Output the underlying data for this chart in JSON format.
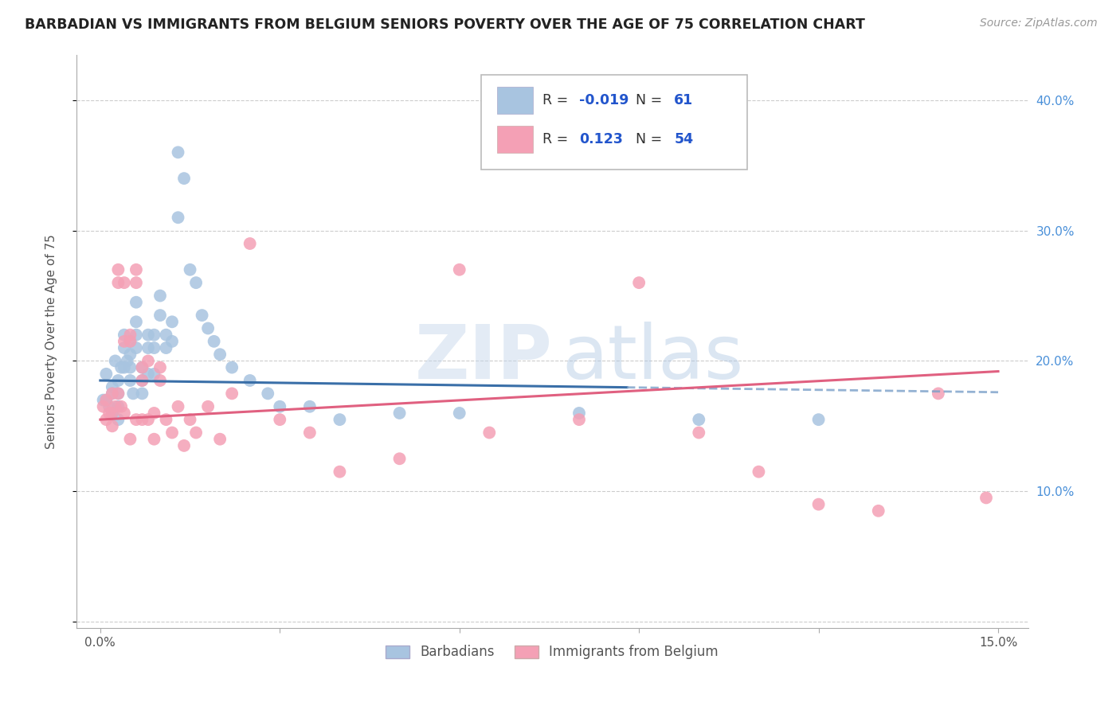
{
  "title": "BARBADIAN VS IMMIGRANTS FROM BELGIUM SENIORS POVERTY OVER THE AGE OF 75 CORRELATION CHART",
  "source": "Source: ZipAtlas.com",
  "ylabel": "Seniors Poverty Over the Age of 75",
  "blue_R": -0.019,
  "blue_N": 61,
  "pink_R": 0.123,
  "pink_N": 54,
  "blue_color": "#a8c4e0",
  "pink_color": "#f4a0b5",
  "blue_line_color": "#3a6fa8",
  "pink_line_color": "#e06080",
  "dashed_line_color": "#7a9fc8",
  "watermark_zip": "ZIP",
  "watermark_atlas": "atlas",
  "legend_label_blue": "Barbadians",
  "legend_label_pink": "Immigrants from Belgium",
  "blue_x": [
    0.0005,
    0.001,
    0.001,
    0.0015,
    0.002,
    0.002,
    0.002,
    0.0025,
    0.003,
    0.003,
    0.003,
    0.003,
    0.0035,
    0.004,
    0.004,
    0.004,
    0.0045,
    0.005,
    0.005,
    0.005,
    0.005,
    0.0055,
    0.006,
    0.006,
    0.006,
    0.006,
    0.007,
    0.007,
    0.007,
    0.008,
    0.008,
    0.008,
    0.009,
    0.009,
    0.009,
    0.01,
    0.01,
    0.011,
    0.011,
    0.012,
    0.012,
    0.013,
    0.013,
    0.014,
    0.015,
    0.016,
    0.017,
    0.018,
    0.019,
    0.02,
    0.022,
    0.025,
    0.028,
    0.03,
    0.035,
    0.04,
    0.05,
    0.06,
    0.08,
    0.1,
    0.12
  ],
  "blue_y": [
    0.17,
    0.19,
    0.17,
    0.165,
    0.18,
    0.175,
    0.16,
    0.2,
    0.185,
    0.175,
    0.165,
    0.155,
    0.195,
    0.22,
    0.21,
    0.195,
    0.2,
    0.215,
    0.205,
    0.195,
    0.185,
    0.175,
    0.245,
    0.23,
    0.22,
    0.21,
    0.195,
    0.185,
    0.175,
    0.22,
    0.21,
    0.19,
    0.22,
    0.21,
    0.19,
    0.25,
    0.235,
    0.22,
    0.21,
    0.23,
    0.215,
    0.31,
    0.36,
    0.34,
    0.27,
    0.26,
    0.235,
    0.225,
    0.215,
    0.205,
    0.195,
    0.185,
    0.175,
    0.165,
    0.165,
    0.155,
    0.16,
    0.16,
    0.16,
    0.155,
    0.155
  ],
  "pink_x": [
    0.0005,
    0.001,
    0.001,
    0.0015,
    0.002,
    0.002,
    0.002,
    0.0025,
    0.003,
    0.003,
    0.003,
    0.0035,
    0.004,
    0.004,
    0.004,
    0.005,
    0.005,
    0.005,
    0.006,
    0.006,
    0.006,
    0.007,
    0.007,
    0.007,
    0.008,
    0.008,
    0.009,
    0.009,
    0.01,
    0.01,
    0.011,
    0.012,
    0.013,
    0.014,
    0.015,
    0.016,
    0.018,
    0.02,
    0.022,
    0.025,
    0.03,
    0.035,
    0.04,
    0.05,
    0.06,
    0.065,
    0.08,
    0.09,
    0.1,
    0.11,
    0.12,
    0.13,
    0.14,
    0.148
  ],
  "pink_y": [
    0.165,
    0.17,
    0.155,
    0.16,
    0.175,
    0.16,
    0.15,
    0.165,
    0.27,
    0.26,
    0.175,
    0.165,
    0.26,
    0.215,
    0.16,
    0.22,
    0.215,
    0.14,
    0.27,
    0.26,
    0.155,
    0.195,
    0.185,
    0.155,
    0.2,
    0.155,
    0.16,
    0.14,
    0.195,
    0.185,
    0.155,
    0.145,
    0.165,
    0.135,
    0.155,
    0.145,
    0.165,
    0.14,
    0.175,
    0.29,
    0.155,
    0.145,
    0.115,
    0.125,
    0.27,
    0.145,
    0.155,
    0.26,
    0.145,
    0.115,
    0.09,
    0.085,
    0.175,
    0.095
  ]
}
